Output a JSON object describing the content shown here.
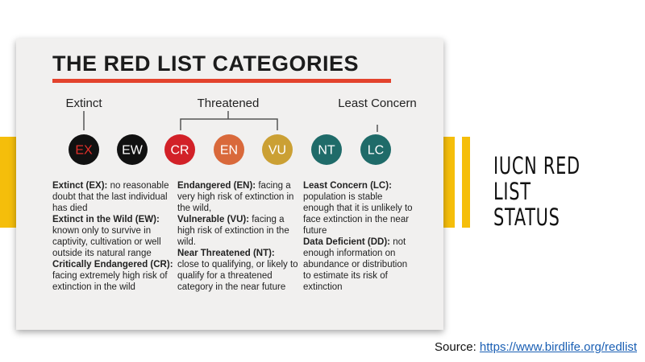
{
  "card": {
    "title": "THE RED LIST CATEGORIES",
    "groups": [
      "Extinct",
      "Threatened",
      "Least Concern"
    ],
    "badges": [
      "EX",
      "EW",
      "CR",
      "EN",
      "VU",
      "NT",
      "LC"
    ],
    "columns": [
      [
        {
          "term": "Extinct (EX):",
          "text": "no reasonable doubt that the last individual has died"
        },
        {
          "term": "Extinct in the Wild (EW):",
          "text": "known only to survive in captivity, cultivation or well outside its natural range"
        },
        {
          "term": "Critically Endangered (CR):",
          "text": "facing extremely high risk of extinction in the wild"
        }
      ],
      [
        {
          "term": "Endangered (EN):",
          "text": "facing a very high risk of extinction in the wild,"
        },
        {
          "term": "Vulnerable (VU):",
          "text": "facing a high risk of extinction in the wild."
        },
        {
          "term": "Near Threatened (NT):",
          "text": "close to qualifying, or likely to qualify for a threatened category in the near future"
        }
      ],
      [
        {
          "term": "Least Concern (LC):",
          "text": "population is stable enough that it is unlikely to face extinction in the near future"
        },
        {
          "term": "Data Deficient (DD):",
          "text": "not enough information on abundance or distribution to estimate its risk of extinction"
        }
      ]
    ]
  },
  "side_title": [
    "IUCN RED",
    "LIST STATUS"
  ],
  "source": {
    "label": "Source:",
    "link": "https://www.birdlife.org/redlist"
  }
}
